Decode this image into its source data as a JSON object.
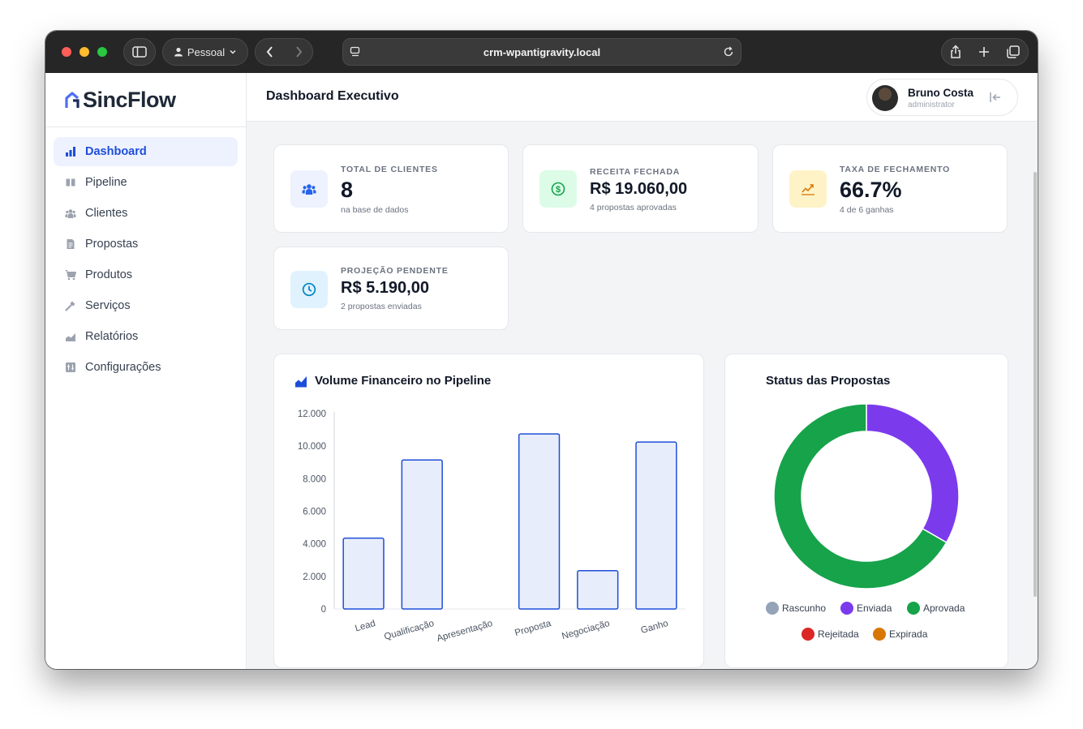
{
  "browser": {
    "profile_label": "Pessoal",
    "url": "crm-wpantigravity.local"
  },
  "sidebar": {
    "logo": "SincFlow",
    "items": [
      {
        "label": "Dashboard",
        "icon": "bar-chart-icon",
        "active": true
      },
      {
        "label": "Pipeline",
        "icon": "columns-icon"
      },
      {
        "label": "Clientes",
        "icon": "users-icon"
      },
      {
        "label": "Propostas",
        "icon": "document-icon"
      },
      {
        "label": "Produtos",
        "icon": "cart-icon"
      },
      {
        "label": "Serviços",
        "icon": "hammer-icon"
      },
      {
        "label": "Relatórios",
        "icon": "area-chart-icon"
      },
      {
        "label": "Configurações",
        "icon": "settings-icon"
      }
    ]
  },
  "header": {
    "title": "Dashboard Executivo",
    "user": {
      "name": "Bruno Costa",
      "role": "administrator"
    }
  },
  "stats": [
    {
      "label": "TOTAL DE CLIENTES",
      "value": "8",
      "sub": "na base de dados",
      "icon": "users-icon",
      "accent": "#2563eb"
    },
    {
      "label": "RECEITA FECHADA",
      "value": "R$ 19.060,00",
      "sub": "4 propostas aprovadas",
      "icon": "dollar-icon",
      "accent": "#16a34a"
    },
    {
      "label": "TAXA DE FECHAMENTO",
      "value": "66.7%",
      "sub": "4 de 6 ganhas",
      "icon": "trend-up-icon",
      "accent": "#d97706"
    },
    {
      "label": "PROJEÇÃO PENDENTE",
      "value": "R$ 5.190,00",
      "sub": "2 propostas enviadas",
      "icon": "clock-icon",
      "accent": "#0284c7"
    }
  ],
  "bar_panel_title": "Volume Financeiro no Pipeline",
  "donut_panel_title": "Status das Propostas",
  "chart_data": [
    {
      "type": "bar",
      "title": "Volume Financeiro no Pipeline",
      "categories": [
        "Lead",
        "Qualificação",
        "Apresentação",
        "Proposta",
        "Negociação",
        "Ganho"
      ],
      "values": [
        4350,
        9150,
        0,
        10750,
        2350,
        10250
      ],
      "ylim": [
        0,
        12000
      ],
      "yticks": [
        0,
        2000,
        4000,
        6000,
        8000,
        10000,
        12000
      ],
      "ytick_labels": [
        "0",
        "2.000",
        "4.000",
        "6.000",
        "8.000",
        "10.000",
        "12.000"
      ],
      "bar_fill": "#e8edfb",
      "bar_stroke": "#1d4ed8",
      "grid": false
    },
    {
      "type": "pie",
      "title": "Status das Propostas",
      "donut": true,
      "legend_position": "bottom",
      "slices": [
        {
          "label": "Rascunho",
          "value": 0,
          "color": "#94a3b8"
        },
        {
          "label": "Enviada",
          "value": 2,
          "color": "#7c3aed"
        },
        {
          "label": "Aprovada",
          "value": 4,
          "color": "#16a34a"
        },
        {
          "label": "Rejeitada",
          "value": 0,
          "color": "#dc2626"
        },
        {
          "label": "Expirada",
          "value": 0,
          "color": "#d97706"
        }
      ]
    }
  ]
}
